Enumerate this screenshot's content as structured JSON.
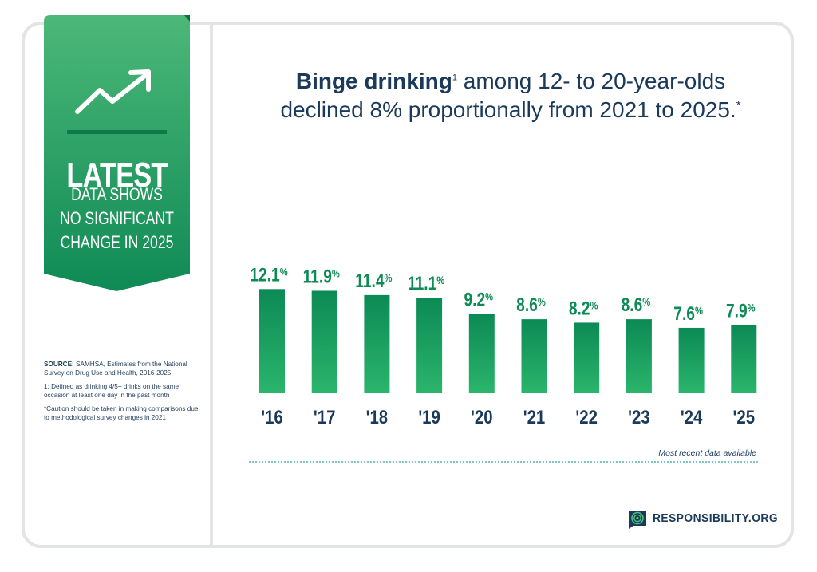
{
  "banner": {
    "headline": "LATEST",
    "lines": [
      "DATA SHOWS",
      "NO SIGNIFICANT",
      "CHANGE IN 2025"
    ],
    "icon": "trend-up-arrow-icon",
    "colors": {
      "top": "#4cb878",
      "bottom": "#0e8a55"
    }
  },
  "notes": {
    "source_label": "SOURCE:",
    "source_text": " SAMHSA, Estimates from the National Survey on Drug Use and Health, 2016-2025",
    "footnote1": "1: Defined as drinking 4/5+ drinks on the same occasion at least one day in the past month",
    "footnote2": "*Caution should be taken in making comparisons due to methodological survey changes in 2021"
  },
  "title": {
    "emphasis": "Binge drinking",
    "superscript": "1",
    "rest": " among 12- to 20-year-olds declined 8% proportionally from 2021 to 2025.",
    "asterisk": "*"
  },
  "chart_data": {
    "type": "bar",
    "categories": [
      "'16",
      "'17",
      "'18",
      "'19",
      "'20",
      "'21",
      "'22",
      "'23",
      "'24",
      "'25"
    ],
    "values": [
      12.1,
      11.9,
      11.4,
      11.1,
      9.2,
      8.6,
      8.2,
      8.6,
      7.6,
      7.9
    ],
    "value_labels": [
      "12.1",
      "11.9",
      "11.4",
      "11.1",
      "9.2",
      "8.6",
      "8.2",
      "8.6",
      "7.6",
      "7.9"
    ],
    "unit": "%",
    "colors": {
      "bar_top": "#0c8a55",
      "bar_bottom": "#2bb56c",
      "label": "#0e8a55",
      "tick": "#1b3a5b"
    }
  },
  "recent_note": "Most recent data available",
  "brand": {
    "name": "RESPONSIBILITY.ORG",
    "icon": "responsibility-logo-icon"
  }
}
